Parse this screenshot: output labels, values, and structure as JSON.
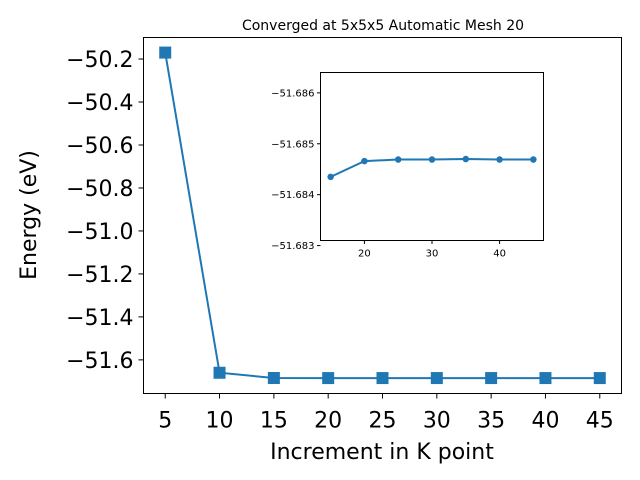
{
  "chart_data": [
    {
      "type": "line",
      "title": "Converged at 5x5x5 Automatic Mesh 20",
      "xlabel": "Increment in K point",
      "ylabel": "Energy (eV)",
      "x": [
        5,
        10,
        15,
        20,
        25,
        30,
        35,
        40,
        45
      ],
      "series": [
        {
          "values": [
            -50.17,
            -51.66,
            -51.6843,
            -51.6847,
            -51.6847,
            -51.6847,
            -51.6847,
            -51.6847,
            -51.6847
          ],
          "color": "#1f77b4",
          "marker": "square"
        }
      ],
      "xticks": [
        5,
        10,
        15,
        20,
        25,
        30,
        35,
        40,
        45
      ],
      "xtick_labels": [
        "5",
        "10",
        "15",
        "20",
        "25",
        "30",
        "35",
        "40",
        "45"
      ],
      "yticks": [
        -50.2,
        -50.4,
        -50.6,
        -50.8,
        -51.0,
        -51.2,
        -51.4,
        -51.6
      ],
      "ytick_labels": [
        "−50.2",
        "−50.4",
        "−50.6",
        "−50.8",
        "−51.0",
        "−51.2",
        "−51.4",
        "−51.6"
      ],
      "xlim": [
        3,
        47
      ],
      "ylim": [
        -51.7565,
        -50.0998
      ],
      "grid": false
    },
    {
      "type": "line",
      "title": "",
      "xlabel": "",
      "ylabel": "",
      "x": [
        15,
        20,
        25,
        30,
        35,
        40,
        45
      ],
      "series": [
        {
          "values": [
            -51.68435,
            -51.68466,
            -51.68469,
            -51.68469,
            -51.6847,
            -51.68469,
            -51.68469
          ],
          "color": "#1f77b4",
          "marker": "circle"
        }
      ],
      "xticks": [
        20,
        30,
        40
      ],
      "xtick_labels": [
        "20",
        "30",
        "40"
      ],
      "yticks": [
        -51.686,
        -51.685,
        -51.684,
        -51.683
      ],
      "ytick_labels": [
        "−51.686",
        "−51.685",
        "−51.684",
        "−51.683"
      ],
      "xlim": [
        13.5,
        46.5
      ],
      "ylim": [
        -51.6831,
        -51.6864
      ],
      "y_inverted": true,
      "grid": false
    }
  ]
}
